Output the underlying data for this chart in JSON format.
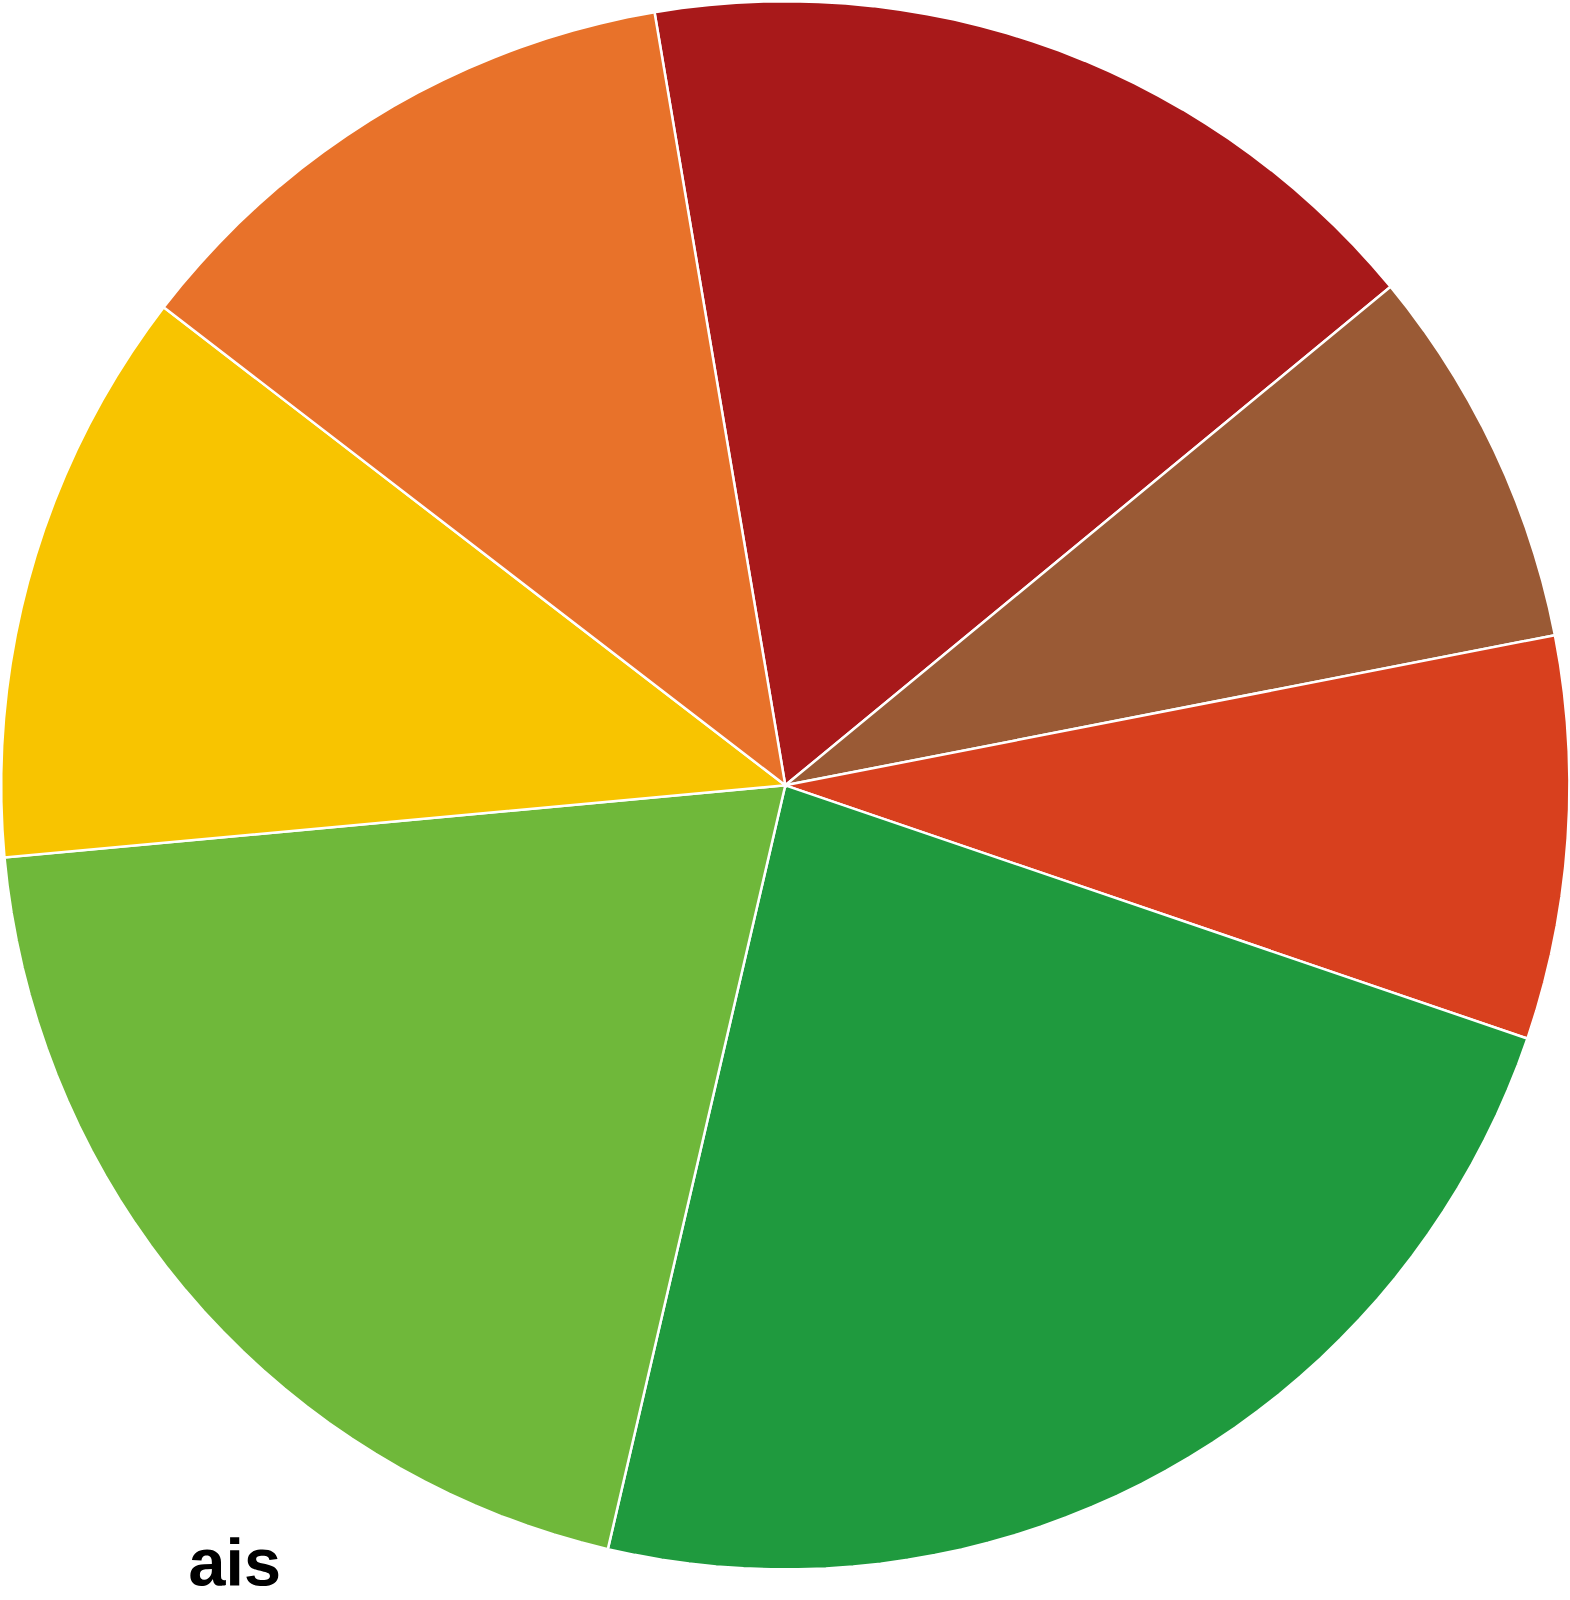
{
  "chart_data": {
    "type": "pie",
    "categories": [
      null,
      null,
      null,
      null,
      null,
      null,
      null
    ],
    "values": [
      16.7,
      7.9,
      8.3,
      23.4,
      19.9,
      11.9,
      11.9
    ],
    "colors": [
      "#a8191a",
      "#9a5a35",
      "#d8401e",
      "#1f9a3e",
      "#6fb83a",
      "#f8c400",
      "#e8722a"
    ],
    "annotations": [
      "ais"
    ]
  }
}
